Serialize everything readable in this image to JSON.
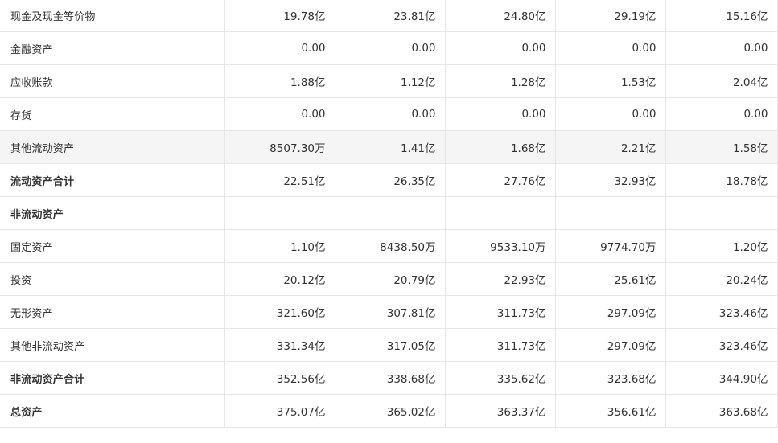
{
  "rows": [
    {
      "label": "现金及现金等价物",
      "bold": false,
      "hl": false,
      "values": [
        "19.78亿",
        "23.81亿",
        "24.80亿",
        "29.19亿",
        "15.16亿"
      ]
    },
    {
      "label": "金融资产",
      "bold": false,
      "hl": false,
      "values": [
        "0.00",
        "0.00",
        "0.00",
        "0.00",
        "0.00"
      ]
    },
    {
      "label": "应收账款",
      "bold": false,
      "hl": false,
      "values": [
        "1.88亿",
        "1.12亿",
        "1.28亿",
        "1.53亿",
        "2.04亿"
      ]
    },
    {
      "label": "存货",
      "bold": false,
      "hl": false,
      "values": [
        "0.00",
        "0.00",
        "0.00",
        "0.00",
        "0.00"
      ]
    },
    {
      "label": "其他流动资产",
      "bold": false,
      "hl": true,
      "values": [
        "8507.30万",
        "1.41亿",
        "1.68亿",
        "2.21亿",
        "1.58亿"
      ]
    },
    {
      "label": "流动资产合计",
      "bold": true,
      "hl": false,
      "values": [
        "22.51亿",
        "26.35亿",
        "27.76亿",
        "32.93亿",
        "18.78亿"
      ]
    },
    {
      "label": "非流动资产",
      "bold": true,
      "hl": false,
      "values": [
        "",
        "",
        "",
        "",
        ""
      ]
    },
    {
      "label": "固定资产",
      "bold": false,
      "hl": false,
      "values": [
        "1.10亿",
        "8438.50万",
        "9533.10万",
        "9774.70万",
        "1.20亿"
      ]
    },
    {
      "label": "投资",
      "bold": false,
      "hl": false,
      "values": [
        "20.12亿",
        "20.79亿",
        "22.93亿",
        "25.61亿",
        "20.24亿"
      ]
    },
    {
      "label": "无形资产",
      "bold": false,
      "hl": false,
      "values": [
        "321.60亿",
        "307.81亿",
        "311.73亿",
        "297.09亿",
        "323.46亿"
      ]
    },
    {
      "label": "其他非流动资产",
      "bold": false,
      "hl": false,
      "values": [
        "331.34亿",
        "317.05亿",
        "311.73亿",
        "297.09亿",
        "323.46亿"
      ]
    },
    {
      "label": "非流动资产合计",
      "bold": true,
      "hl": false,
      "values": [
        "352.56亿",
        "338.68亿",
        "335.62亿",
        "323.68亿",
        "344.90亿"
      ]
    },
    {
      "label": "总资产",
      "bold": true,
      "hl": false,
      "values": [
        "375.07亿",
        "365.02亿",
        "363.37亿",
        "356.61亿",
        "363.68亿"
      ]
    }
  ]
}
